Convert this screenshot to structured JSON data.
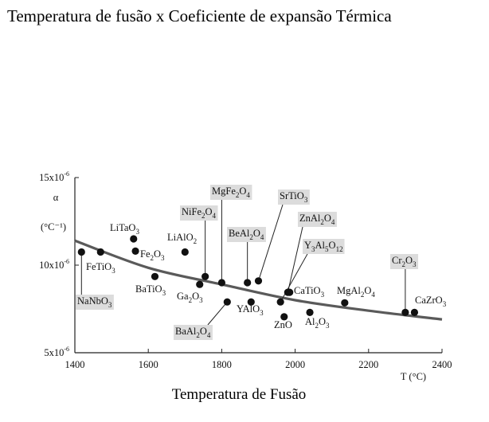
{
  "page": {
    "title": "Temperatura de fusão x Coeficiente de expansão Térmica",
    "caption": "Temperatura de Fusão"
  },
  "chart_data": {
    "type": "scatter",
    "xlabel": "T (°C)",
    "ylabel": "α (°C⁻¹)",
    "xlim": [
      1400,
      2400
    ],
    "ylim": [
      5e-06,
      1.5e-05
    ],
    "x_ticks": [
      1400,
      1600,
      1800,
      2000,
      2200,
      2400
    ],
    "y_ticks": [
      {
        "value": 5e-06,
        "label": "5x10",
        "exp": "-6"
      },
      {
        "value": 1e-05,
        "label": "10x10",
        "exp": "-6"
      },
      {
        "value": 1.5e-05,
        "label": "15x10",
        "exp": "-6"
      }
    ],
    "grid": false,
    "trend_curve": [
      [
        1400,
        1.14e-05
      ],
      [
        1600,
        9.85e-06
      ],
      [
        1800,
        8.9e-06
      ],
      [
        2000,
        8e-06
      ],
      [
        2200,
        7.4e-06
      ],
      [
        2400,
        6.9e-06
      ]
    ],
    "points": [
      {
        "name": "NaNbO3",
        "formula": [
          [
            "NaNbO",
            ""
          ],
          [
            "3",
            "s"
          ]
        ],
        "x": 1418,
        "y": 1.075e-05,
        "boxed": true
      },
      {
        "name": "FeTiO3",
        "formula": [
          [
            "FeTiO",
            ""
          ],
          [
            "3",
            "s"
          ]
        ],
        "x": 1470,
        "y": 1.075e-05,
        "boxed": false
      },
      {
        "name": "LiTaO3",
        "formula": [
          [
            "LiTaO",
            ""
          ],
          [
            "3",
            "s"
          ]
        ],
        "x": 1560,
        "y": 1.15e-05,
        "boxed": false
      },
      {
        "name": "Fe2O3",
        "formula": [
          [
            "Fe",
            ""
          ],
          [
            "2",
            "s"
          ],
          [
            "O",
            ""
          ],
          [
            "3",
            "s"
          ]
        ],
        "x": 1565,
        "y": 1.08e-05,
        "boxed": false
      },
      {
        "name": "BaTiO3",
        "formula": [
          [
            "BaTiO",
            ""
          ],
          [
            "3",
            "s"
          ]
        ],
        "x": 1618,
        "y": 9.35e-06,
        "boxed": false
      },
      {
        "name": "LiAlO2",
        "formula": [
          [
            "LiAlO",
            ""
          ],
          [
            "2",
            "s"
          ]
        ],
        "x": 1700,
        "y": 1.075e-05,
        "boxed": false
      },
      {
        "name": "Ga2O3",
        "formula": [
          [
            "Ga",
            ""
          ],
          [
            "2",
            "s"
          ],
          [
            "O",
            ""
          ],
          [
            "3",
            "s"
          ]
        ],
        "x": 1740,
        "y": 8.9e-06,
        "boxed": false
      },
      {
        "name": "NiFe2O4",
        "formula": [
          [
            "NiFe",
            ""
          ],
          [
            "2",
            "s"
          ],
          [
            "O",
            ""
          ],
          [
            "4",
            "s"
          ]
        ],
        "x": 1755,
        "y": 9.35e-06,
        "boxed": true
      },
      {
        "name": "MgFe2O4",
        "formula": [
          [
            "MgFe",
            ""
          ],
          [
            "2",
            "s"
          ],
          [
            "O",
            ""
          ],
          [
            "4",
            "s"
          ]
        ],
        "x": 1800,
        "y": 9e-06,
        "boxed": true
      },
      {
        "name": "BaAl2O4",
        "formula": [
          [
            "BaAl",
            ""
          ],
          [
            "2",
            "s"
          ],
          [
            "O",
            ""
          ],
          [
            "4",
            "s"
          ]
        ],
        "x": 1815,
        "y": 7.9e-06,
        "boxed": true
      },
      {
        "name": "BeAl2O4",
        "formula": [
          [
            "BeAl",
            ""
          ],
          [
            "2",
            "s"
          ],
          [
            "O",
            ""
          ],
          [
            "4",
            "s"
          ]
        ],
        "x": 1870,
        "y": 9e-06,
        "boxed": true
      },
      {
        "name": "YAlO3",
        "formula": [
          [
            "YAlO",
            ""
          ],
          [
            "3",
            "s"
          ]
        ],
        "x": 1880,
        "y": 7.9e-06,
        "boxed": false
      },
      {
        "name": "SrTiO3",
        "formula": [
          [
            "SrTiO",
            ""
          ],
          [
            "3",
            "s"
          ]
        ],
        "x": 1900,
        "y": 9.1e-06,
        "boxed": true
      },
      {
        "name": "Y3Al5O12",
        "formula": [
          [
            "Y",
            ""
          ],
          [
            "3",
            "s"
          ],
          [
            "Al",
            ""
          ],
          [
            "5",
            "s"
          ],
          [
            "O",
            ""
          ],
          [
            "12",
            "s"
          ]
        ],
        "x": 1960,
        "y": 7.9e-06,
        "boxed": true
      },
      {
        "name": "ZnO",
        "formula": [
          [
            "ZnO",
            ""
          ]
        ],
        "x": 1970,
        "y": 7.05e-06,
        "boxed": false
      },
      {
        "name": "ZnAl2O4",
        "formula": [
          [
            "ZnAl",
            ""
          ],
          [
            "2",
            "s"
          ],
          [
            "O",
            ""
          ],
          [
            "4",
            "s"
          ]
        ],
        "x": 1980,
        "y": 8.45e-06,
        "boxed": true
      },
      {
        "name": "CaTiO3",
        "formula": [
          [
            "CaTiO",
            ""
          ],
          [
            "3",
            "s"
          ]
        ],
        "x": 1985,
        "y": 8.45e-06,
        "boxed": false
      },
      {
        "name": "Al2O3",
        "formula": [
          [
            "Al",
            ""
          ],
          [
            "2",
            "s"
          ],
          [
            "O",
            ""
          ],
          [
            "3",
            "s"
          ]
        ],
        "x": 2040,
        "y": 7.3e-06,
        "boxed": false
      },
      {
        "name": "MgAl2O4",
        "formula": [
          [
            "MgAl",
            ""
          ],
          [
            "2",
            "s"
          ],
          [
            "O",
            ""
          ],
          [
            "4",
            "s"
          ]
        ],
        "x": 2135,
        "y": 7.85e-06,
        "boxed": false
      },
      {
        "name": "Cr2O3",
        "formula": [
          [
            "Cr",
            ""
          ],
          [
            "2",
            "s"
          ],
          [
            "O",
            ""
          ],
          [
            "3",
            "s"
          ]
        ],
        "x": 2300,
        "y": 7.3e-06,
        "boxed": true
      },
      {
        "name": "CaZrO3",
        "formula": [
          [
            "CaZrO",
            ""
          ],
          [
            "3",
            "s"
          ]
        ],
        "x": 2325,
        "y": 7.3e-06,
        "boxed": false
      }
    ]
  }
}
